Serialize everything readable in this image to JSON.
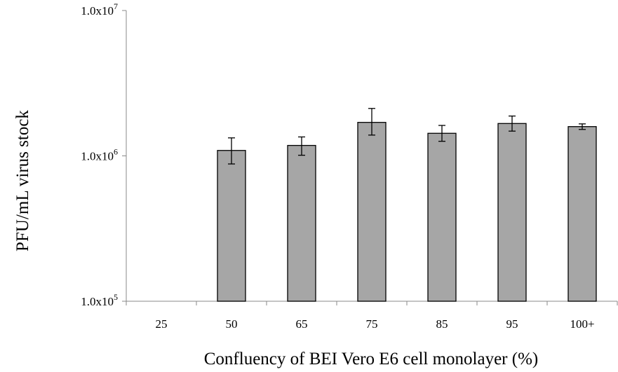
{
  "chart_data": {
    "type": "bar",
    "title": "",
    "xlabel": "Confluency of BEI Vero E6 cell monolayer (%)",
    "ylabel": "PFU/mL virus stock",
    "yscale": "log",
    "ylim": [
      100000,
      10000000
    ],
    "yticks": [
      {
        "value": 100000,
        "base": "1.0x10",
        "exp": "5"
      },
      {
        "value": 1000000,
        "base": "1.0x10",
        "exp": "6"
      },
      {
        "value": 10000000,
        "base": "1.0x10",
        "exp": "7"
      }
    ],
    "categories": [
      "25",
      "50",
      "65",
      "75",
      "85",
      "95",
      "100+"
    ],
    "series": [
      {
        "values": [
          null,
          1090000,
          1180000,
          1700000,
          1430000,
          1670000,
          1590000
        ],
        "error_low": [
          null,
          880000,
          1010000,
          1390000,
          1260000,
          1480000,
          1520000
        ],
        "error_high": [
          null,
          1330000,
          1350000,
          2120000,
          1620000,
          1880000,
          1660000
        ]
      }
    ],
    "bar_color": "#a6a6a6",
    "grid": false,
    "legend": "none"
  }
}
